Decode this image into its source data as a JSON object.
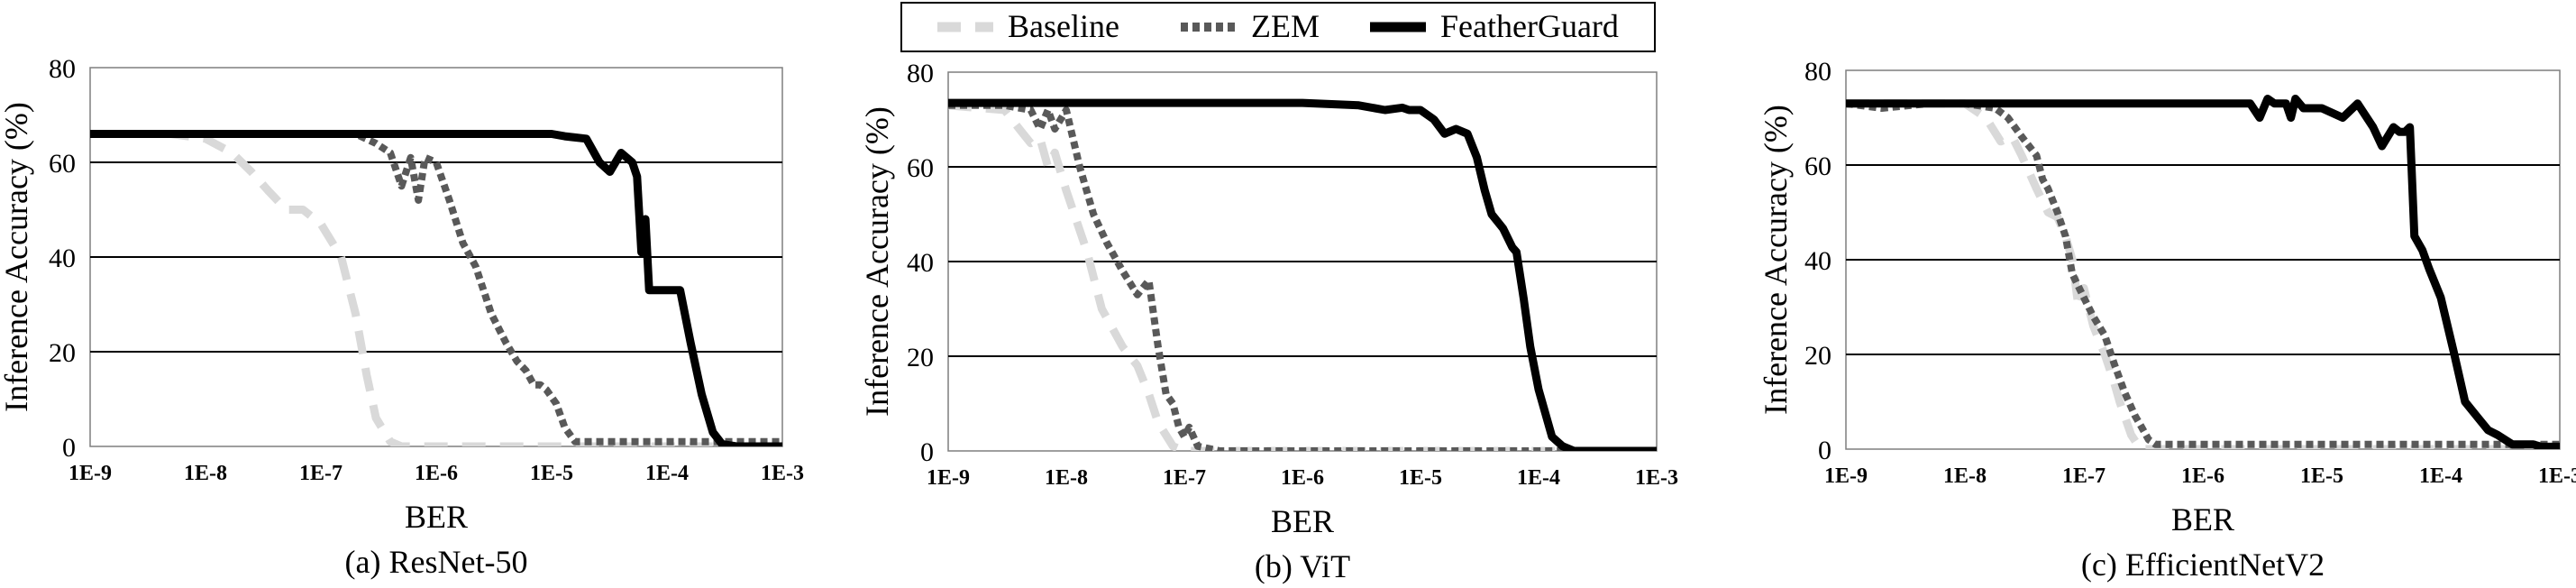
{
  "legend": {
    "entries": [
      {
        "name": "Baseline",
        "color": "#d9d9d9",
        "style": "long-dash"
      },
      {
        "name": "ZEM",
        "color": "#595959",
        "style": "square-dot"
      },
      {
        "name": "FeatherGuard",
        "color": "#000000",
        "style": "solid"
      }
    ]
  },
  "chart_data": [
    {
      "type": "line",
      "caption": "(a) ResNet-50",
      "xlabel": "BER",
      "ylabel": "Inference Accuracy (%)",
      "x_scale": "log",
      "xlim": [
        1e-09,
        0.001
      ],
      "ylim": [
        0,
        80
      ],
      "x_ticks": [
        "1E-9",
        "1E-8",
        "1E-7",
        "1E-6",
        "1E-5",
        "1E-4",
        "1E-3"
      ],
      "y_ticks": [
        "0",
        "20",
        "40",
        "60",
        "80"
      ],
      "grid": "horizontal",
      "series": [
        {
          "name": "Baseline",
          "x": [
            1e-09,
            5e-09,
            1e-08,
            1.7e-08,
            2.5e-08,
            3.5e-08,
            5e-08,
            7e-08,
            1e-07,
            1.5e-07,
            2e-07,
            2.5e-07,
            3e-07,
            4e-07,
            5e-07,
            1e-06,
            1e-05,
            2e-05,
            0.0001,
            0.001
          ],
          "y": [
            66,
            66,
            65,
            62,
            58,
            54,
            50,
            50,
            47,
            40,
            28,
            15,
            6,
            1,
            0,
            0,
            0,
            0,
            0,
            0
          ]
        },
        {
          "name": "ZEM",
          "x": [
            1e-09,
            1e-08,
            1e-07,
            2e-07,
            3e-07,
            4e-07,
            5e-07,
            6e-07,
            7e-07,
            8e-07,
            1e-06,
            1.3e-06,
            1.7e-06,
            2.2e-06,
            3e-06,
            4e-06,
            5e-06,
            6e-06,
            7e-06,
            8e-06,
            9e-06,
            1.1e-05,
            1.3e-05,
            1.6e-05,
            2e-05,
            0.0001,
            0.0003,
            0.001
          ],
          "y": [
            66,
            66,
            66,
            66,
            64,
            62,
            55,
            61,
            52,
            61,
            60,
            52,
            43,
            38,
            28,
            22,
            18,
            16,
            13,
            13,
            12,
            9,
            4,
            1,
            1,
            1,
            1,
            1
          ]
        },
        {
          "name": "FeatherGuard",
          "x": [
            1e-09,
            1e-07,
            1e-06,
            1e-05,
            1.3e-05,
            2e-05,
            2.6e-05,
            3.2e-05,
            4e-05,
            5e-05,
            5.5e-05,
            6e-05,
            6.5e-05,
            7e-05,
            7.5e-05,
            0.0001,
            0.00013,
            0.00016,
            0.0002,
            0.00025,
            0.0003,
            0.0004,
            0.0005,
            0.001
          ],
          "y": [
            66,
            66,
            66,
            66,
            65.5,
            65,
            60,
            58,
            62,
            60,
            57,
            41,
            48,
            33,
            33,
            33,
            33,
            22,
            11,
            3,
            0.5,
            0,
            0,
            0
          ]
        }
      ]
    },
    {
      "type": "line",
      "caption": "(b) ViT",
      "xlabel": "BER",
      "ylabel": "Inference Accuracy (%)",
      "x_scale": "log",
      "xlim": [
        1e-09,
        0.001
      ],
      "ylim": [
        0,
        80
      ],
      "x_ticks": [
        "1E-9",
        "1E-8",
        "1E-7",
        "1E-6",
        "1E-5",
        "1E-4",
        "1E-3"
      ],
      "y_ticks": [
        "0",
        "20",
        "40",
        "60",
        "80"
      ],
      "grid": "horizontal",
      "series": [
        {
          "name": "Baseline",
          "x": [
            1e-09,
            3e-09,
            4e-09,
            5e-09,
            6e-09,
            7e-09,
            8e-09,
            1e-08,
            1.5e-08,
            2e-08,
            3e-08,
            4e-08,
            5e-08,
            6e-08,
            8e-08,
            1e-07,
            1e-06,
            1e-05,
            0.001
          ],
          "y": [
            73,
            72,
            68,
            65,
            66,
            60,
            63,
            55,
            42,
            30,
            22,
            18,
            12,
            6,
            1,
            0,
            0,
            0,
            0
          ]
        },
        {
          "name": "ZEM",
          "x": [
            1e-09,
            3e-09,
            5e-09,
            6e-09,
            7e-09,
            8e-09,
            1e-08,
            1.3e-08,
            1.7e-08,
            2.2e-08,
            3e-08,
            4e-08,
            5e-08,
            6e-08,
            7e-08,
            8e-08,
            9e-08,
            1e-07,
            1.1e-07,
            1.3e-07,
            2e-07,
            1e-06,
            0.0001,
            0.001
          ],
          "y": [
            73,
            73,
            72,
            68,
            72,
            68,
            72,
            60,
            50,
            44,
            38,
            33,
            36,
            22,
            12,
            10,
            5,
            3,
            5,
            1,
            0,
            0,
            0,
            0
          ]
        },
        {
          "name": "FeatherGuard",
          "x": [
            1e-09,
            1e-07,
            1e-06,
            3e-06,
            5e-06,
            7e-06,
            8e-06,
            1e-05,
            1.3e-05,
            1.6e-05,
            2e-05,
            2.5e-05,
            3e-05,
            3.5e-05,
            4e-05,
            5e-05,
            6e-05,
            6.5e-05,
            7.5e-05,
            8.5e-05,
            0.0001,
            0.00013,
            0.00016,
            0.0002,
            0.0003,
            0.001
          ],
          "y": [
            73.5,
            73.5,
            73.5,
            73,
            72,
            72.5,
            72,
            72,
            70,
            67,
            68,
            67,
            62,
            55,
            50,
            47,
            43,
            42,
            32,
            22,
            13,
            3,
            1,
            0,
            0,
            0
          ]
        }
      ]
    },
    {
      "type": "line",
      "caption": "(c) EfficientNetV2",
      "xlabel": "BER",
      "ylabel": "Inference Accuracy (%)",
      "x_scale": "log",
      "xlim": [
        1e-09,
        0.001
      ],
      "ylim": [
        0,
        80
      ],
      "x_ticks": [
        "1E-9",
        "1E-8",
        "1E-7",
        "1E-6",
        "1E-5",
        "1E-4",
        "1E-3"
      ],
      "y_ticks": [
        "0",
        "20",
        "40",
        "60",
        "80"
      ],
      "grid": "horizontal",
      "series": [
        {
          "name": "Baseline",
          "x": [
            1e-09,
            1e-08,
            1.5e-08,
            2e-08,
            2.5e-08,
            3e-08,
            4e-08,
            5e-08,
            6e-08,
            7e-08,
            8e-08,
            9e-08,
            1e-07,
            1.2e-07,
            1.5e-07,
            1.8e-07,
            2e-07,
            2.5e-07,
            3e-07,
            1e-06,
            0.001
          ],
          "y": [
            73,
            73,
            70,
            65,
            66,
            62,
            55,
            50,
            49,
            45,
            40,
            30,
            34,
            26,
            20,
            14,
            10,
            3,
            0,
            0,
            0
          ]
        },
        {
          "name": "ZEM",
          "x": [
            1e-09,
            2e-09,
            5e-09,
            1e-08,
            1.8e-08,
            2.3e-08,
            3e-08,
            4e-08,
            4.5e-08,
            5e-08,
            6e-08,
            7e-08,
            8e-08,
            1e-07,
            1.2e-07,
            1.5e-07,
            1.8e-07,
            2.2e-07,
            2.7e-07,
            3e-07,
            3.5e-07,
            4e-07,
            5e-07,
            1e-06,
            0.0001,
            0.001
          ],
          "y": [
            73,
            72,
            73,
            73,
            72,
            70,
            66,
            62,
            57,
            55,
            50,
            45,
            37,
            32,
            28,
            24,
            18,
            12,
            7,
            5,
            2,
            1,
            1,
            1,
            1,
            1
          ]
        },
        {
          "name": "FeatherGuard",
          "x": [
            1e-09,
            1e-07,
            1e-06,
            2.5e-06,
            3e-06,
            3.5e-06,
            4e-06,
            5e-06,
            5.5e-06,
            6e-06,
            7e-06,
            1e-05,
            1.5e-05,
            2e-05,
            2.7e-05,
            3.2e-05,
            4e-05,
            4.5e-05,
            5e-05,
            5.5e-05,
            6e-05,
            7e-05,
            8e-05,
            0.0001,
            0.00013,
            0.00016,
            0.0002,
            0.00025,
            0.0003,
            0.0004,
            0.0005,
            0.0006,
            0.0007,
            0.0008,
            0.001
          ],
          "y": [
            73,
            73,
            73,
            73,
            70,
            74,
            73,
            73,
            70,
            74,
            72,
            72,
            70,
            73,
            68,
            64,
            68,
            67,
            67,
            68,
            45,
            42,
            38,
            32,
            20,
            10,
            7,
            4,
            3,
            1,
            1,
            1,
            0.5,
            0.5,
            0.5
          ]
        }
      ]
    }
  ]
}
